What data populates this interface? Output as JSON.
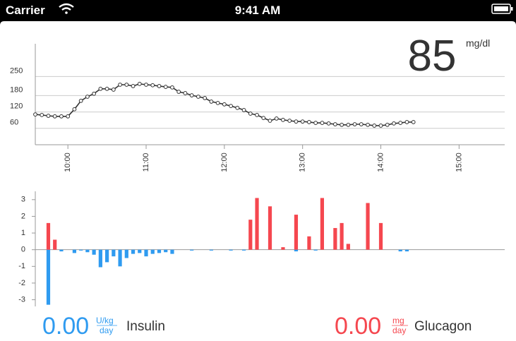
{
  "status_bar": {
    "carrier": "Carrier",
    "time": "9:41 AM"
  },
  "readout": {
    "value": "85",
    "unit": "mg/dl"
  },
  "glucose_chart": {
    "type": "line",
    "color": "#333333",
    "grid": true,
    "x": [
      575,
      580,
      585,
      590,
      595,
      600,
      605,
      610,
      615,
      620,
      625,
      630,
      635,
      640,
      645,
      650,
      655,
      660,
      665,
      670,
      675,
      680,
      685,
      690,
      695,
      700,
      705,
      710,
      715,
      720,
      725,
      730,
      735,
      740,
      745,
      750,
      755,
      760,
      765,
      770,
      775,
      780,
      785,
      790,
      795,
      800,
      805,
      810,
      815,
      820,
      825,
      830,
      835,
      840,
      845,
      850,
      855,
      860,
      865
    ],
    "values": [
      111,
      109,
      106,
      104,
      104,
      104,
      130,
      161,
      176,
      187,
      205,
      205,
      202,
      220,
      220,
      215,
      223,
      220,
      218,
      215,
      212,
      210,
      194,
      189,
      181,
      176,
      171,
      158,
      153,
      148,
      142,
      135,
      127,
      114,
      109,
      98,
      88,
      96,
      91,
      88,
      85,
      85,
      83,
      80,
      80,
      78,
      75,
      73,
      73,
      75,
      75,
      73,
      70,
      70,
      73,
      78,
      80,
      83,
      83
    ],
    "xlim": [
      575,
      935
    ],
    "xticks": [
      {
        "value": 600,
        "label": "10:00"
      },
      {
        "value": 660,
        "label": "11:00"
      },
      {
        "value": 720,
        "label": "12:00"
      },
      {
        "value": 780,
        "label": "13:00"
      },
      {
        "value": 840,
        "label": "14:00"
      },
      {
        "value": 900,
        "label": "15:00"
      }
    ],
    "ylim": [
      0,
      370
    ],
    "yticks": [
      60,
      120,
      180,
      250
    ]
  },
  "dose_chart": {
    "type": "bar",
    "xlim": [
      575,
      935
    ],
    "ylim": [
      -3.4,
      3.5
    ],
    "yticks": [
      3,
      2,
      1,
      0,
      -1,
      -2,
      -3
    ],
    "series": [
      {
        "name": "Insulin",
        "color": "#2f9bf0",
        "x": [
          585,
          595,
          605,
          610,
          615,
          620,
          625,
          630,
          635,
          640,
          645,
          650,
          655,
          660,
          665,
          670,
          675,
          680,
          695,
          710,
          725,
          735,
          775,
          790,
          855,
          860
        ],
        "values": [
          -3.3,
          -0.1,
          -0.2,
          -0.05,
          -0.15,
          -0.3,
          -1.05,
          -0.75,
          -0.4,
          -1.0,
          -0.5,
          -0.25,
          -0.2,
          -0.4,
          -0.25,
          -0.2,
          -0.15,
          -0.25,
          -0.05,
          -0.05,
          -0.05,
          -0.05,
          -0.1,
          -0.05,
          -0.1,
          -0.1
        ]
      },
      {
        "name": "Glucagon",
        "color": "#f5474f",
        "x": [
          585,
          590,
          740,
          745,
          755,
          765,
          775,
          785,
          795,
          805,
          810,
          815,
          830,
          840
        ],
        "values": [
          1.6,
          0.6,
          1.8,
          3.1,
          2.6,
          0.15,
          2.1,
          0.8,
          3.1,
          1.3,
          1.6,
          0.35,
          2.8,
          1.6
        ]
      }
    ]
  },
  "insulin": {
    "value": "0.00",
    "unit_top": "U/kg",
    "unit_bottom": "day"
  },
  "glucagon": {
    "value": "0.00",
    "unit_top": "mg",
    "unit_bottom": "day"
  }
}
